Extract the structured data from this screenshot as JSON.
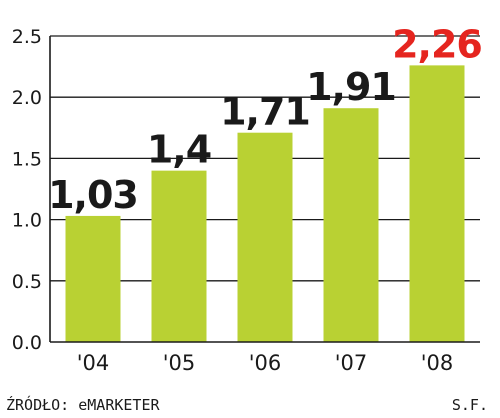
{
  "chart_data": {
    "type": "bar",
    "categories": [
      "'04",
      "'05",
      "'06",
      "'07",
      "'08"
    ],
    "values": [
      1.03,
      1.4,
      1.71,
      1.91,
      2.26
    ],
    "data_labels": [
      "1,03",
      "1,4",
      "1,71",
      "1,91",
      "2,26"
    ],
    "highlight_index": 4,
    "ylim": [
      0,
      2.5
    ],
    "yticks": [
      0.0,
      0.5,
      1.0,
      1.5,
      2.0,
      2.5
    ],
    "ytick_labels": [
      "0.0",
      "0.5",
      "1.0",
      "1.5",
      "2.0",
      "2.5"
    ],
    "grid": true,
    "title": "",
    "xlabel": "",
    "ylabel": ""
  },
  "footer": {
    "source": "ŹRÓDŁO: eMARKETER",
    "author": "S.F."
  },
  "colors": {
    "bar": "#b9d133",
    "highlight_label": "#e5251f",
    "label": "#1a1a1a",
    "grid": "#1a1a1a"
  }
}
